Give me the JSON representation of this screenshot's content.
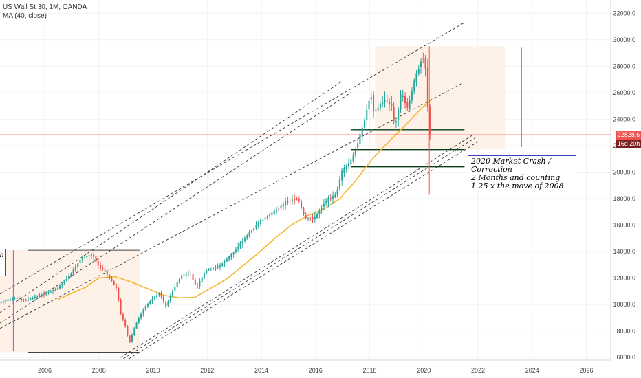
{
  "legend": {
    "symbol_line": "US Wall St 30, 1M, OANDA",
    "indicator_line": "MA (40, close)"
  },
  "annotation": {
    "line1": "2020 Market Crash / Correction",
    "line2": "2 Months and counting",
    "line3": "1.25 x the move of 2008"
  },
  "annotation_left": {
    "fragment": "h"
  },
  "price_tags": {
    "last_price": "22828.6",
    "countdown": "16d 20h"
  },
  "colors": {
    "up_candle": "#26a69a",
    "down_candle": "#ef5350",
    "ma_line": "#f5b52f",
    "box_fill": "#fdeee0",
    "marker_line": "#e040fb",
    "price_line": "#ef5350",
    "support_line": "#0b3d1a",
    "channel_line": "#333333",
    "annotation_border": "#3f3fbf",
    "countdown_tag": "#7a1f1f"
  },
  "chart_data": {
    "type": "candlestick",
    "x_ticks": [
      "2006",
      "2008",
      "2010",
      "2012",
      "2014",
      "2016",
      "2018",
      "2020",
      "2022",
      "2024",
      "2026"
    ],
    "y_ticks": [
      "6000.0",
      "8000.0",
      "10000.0",
      "12000.0",
      "14000.0",
      "16000.0",
      "18000.0",
      "20000.0",
      "22000.0",
      "24000.0",
      "26000.0",
      "28000.0",
      "30000.0",
      "32000.0"
    ],
    "ylim": [
      5800,
      33000
    ],
    "xlim": [
      2004.35,
      2026.9
    ],
    "last_price": 22828.6,
    "ma_period": 40,
    "price_path": [
      [
        2004.35,
        10100
      ],
      [
        2004.6,
        10300
      ],
      [
        2005.0,
        10500
      ],
      [
        2005.3,
        10300
      ],
      [
        2005.6,
        10500
      ],
      [
        2006.0,
        10800
      ],
      [
        2006.5,
        11200
      ],
      [
        2007.0,
        12300
      ],
      [
        2007.4,
        13500
      ],
      [
        2007.8,
        13800
      ],
      [
        2008.0,
        13000
      ],
      [
        2008.3,
        12400
      ],
      [
        2008.7,
        11200
      ],
      [
        2008.85,
        9300
      ],
      [
        2009.0,
        8500
      ],
      [
        2009.17,
        7100
      ],
      [
        2009.4,
        8500
      ],
      [
        2009.7,
        9700
      ],
      [
        2010.0,
        10400
      ],
      [
        2010.3,
        10900
      ],
      [
        2010.5,
        9800
      ],
      [
        2010.8,
        11200
      ],
      [
        2011.1,
        12200
      ],
      [
        2011.4,
        12400
      ],
      [
        2011.65,
        11300
      ],
      [
        2012.0,
        12600
      ],
      [
        2012.5,
        12900
      ],
      [
        2013.0,
        13900
      ],
      [
        2013.5,
        15200
      ],
      [
        2014.0,
        16300
      ],
      [
        2014.5,
        17000
      ],
      [
        2015.0,
        17800
      ],
      [
        2015.4,
        18000
      ],
      [
        2015.65,
        16500
      ],
      [
        2016.0,
        16500
      ],
      [
        2016.4,
        17800
      ],
      [
        2016.8,
        18300
      ],
      [
        2017.0,
        20000
      ],
      [
        2017.4,
        21000
      ],
      [
        2017.8,
        23500
      ],
      [
        2018.08,
        26000
      ],
      [
        2018.2,
        24500
      ],
      [
        2018.6,
        25500
      ],
      [
        2018.85,
        25000
      ],
      [
        2018.97,
        23300
      ],
      [
        2019.2,
        26000
      ],
      [
        2019.45,
        24800
      ],
      [
        2019.7,
        27000
      ],
      [
        2019.95,
        28500
      ],
      [
        2020.08,
        28600
      ],
      [
        2020.17,
        25400
      ],
      [
        2020.25,
        22828.6
      ]
    ],
    "moving_average": [
      [
        2006.5,
        10400
      ],
      [
        2007.5,
        11300
      ],
      [
        2008.0,
        12000
      ],
      [
        2008.6,
        12100
      ],
      [
        2009.2,
        11700
      ],
      [
        2009.8,
        11200
      ],
      [
        2010.4,
        10700
      ],
      [
        2011.0,
        10500
      ],
      [
        2011.55,
        10550
      ],
      [
        2012.1,
        11200
      ],
      [
        2012.7,
        11900
      ],
      [
        2013.3,
        12900
      ],
      [
        2013.9,
        13900
      ],
      [
        2014.5,
        15000
      ],
      [
        2015.1,
        16000
      ],
      [
        2015.7,
        16700
      ],
      [
        2016.3,
        17200
      ],
      [
        2016.9,
        18000
      ],
      [
        2017.5,
        19400
      ],
      [
        2018.1,
        21000
      ],
      [
        2018.7,
        22300
      ],
      [
        2019.3,
        23500
      ],
      [
        2019.9,
        24800
      ],
      [
        2020.25,
        25400
      ]
    ],
    "support_levels": [
      23200,
      21700,
      20400
    ],
    "shaded_boxes": [
      {
        "x": [
          2004.35,
          2009.5
        ],
        "y": [
          6400,
          14100
        ]
      },
      {
        "x": [
          2018.2,
          2023.0
        ],
        "y": [
          21700,
          29500
        ]
      }
    ],
    "vertical_markers": [
      {
        "x": 2004.85,
        "y": [
          6500,
          14100
        ]
      },
      {
        "x": 2023.6,
        "y": [
          21900,
          29400
        ]
      }
    ],
    "channel_lines": [
      {
        "from": [
          2004.35,
          10800
        ],
        "to": [
          2021.5,
          31300
        ]
      },
      {
        "from": [
          2004.35,
          9400
        ],
        "to": [
          2017.0,
          26900
        ]
      },
      {
        "from": [
          2004.35,
          8600
        ],
        "to": [
          2017.3,
          26000
        ]
      },
      {
        "from": [
          2004.35,
          8200
        ],
        "to": [
          2021.5,
          26800
        ]
      },
      {
        "from": [
          2008.8,
          6000
        ],
        "to": [
          2021.8,
          22800
        ]
      },
      {
        "from": [
          2008.9,
          5900
        ],
        "to": [
          2021.9,
          22600
        ]
      },
      {
        "from": [
          2009.1,
          5900
        ],
        "to": [
          2022.0,
          22300
        ]
      }
    ]
  }
}
